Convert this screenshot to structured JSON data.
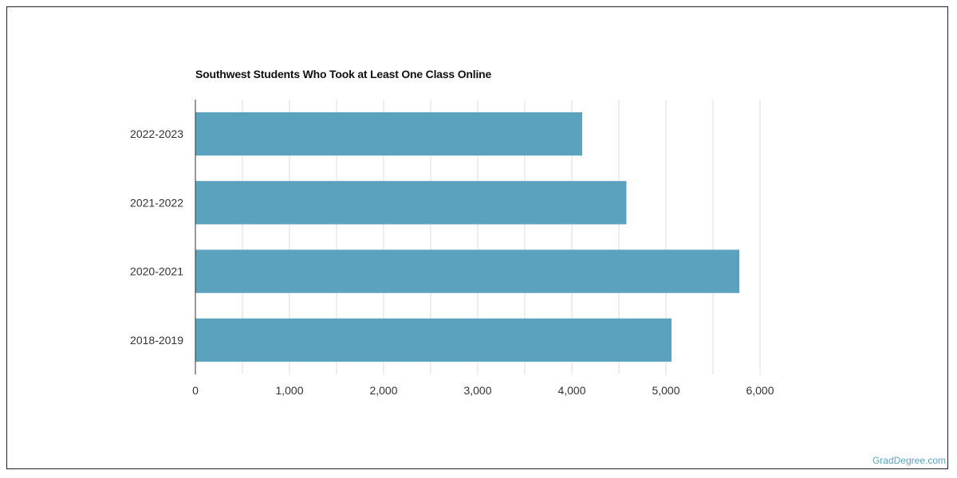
{
  "chart_data": {
    "type": "bar",
    "orientation": "horizontal",
    "title": "Southwest Students Who Took at Least One Class Online",
    "categories": [
      "2022-2023",
      "2021-2022",
      "2020-2021",
      "2018-2019"
    ],
    "values": [
      4110,
      4580,
      5780,
      5060
    ],
    "x_ticks": [
      0,
      1000,
      2000,
      3000,
      4000,
      5000,
      6000
    ],
    "x_tick_labels": [
      "0",
      "1,000",
      "2,000",
      "3,000",
      "4,000",
      "5,000",
      "6,000"
    ],
    "xlim": [
      0,
      6000
    ],
    "xlabel": "",
    "ylabel": "",
    "grid": true,
    "legend": "none",
    "bar_color": "#5ba2bf"
  },
  "watermark": {
    "text": "GradDegree.com",
    "color": "#5ba2bf"
  }
}
